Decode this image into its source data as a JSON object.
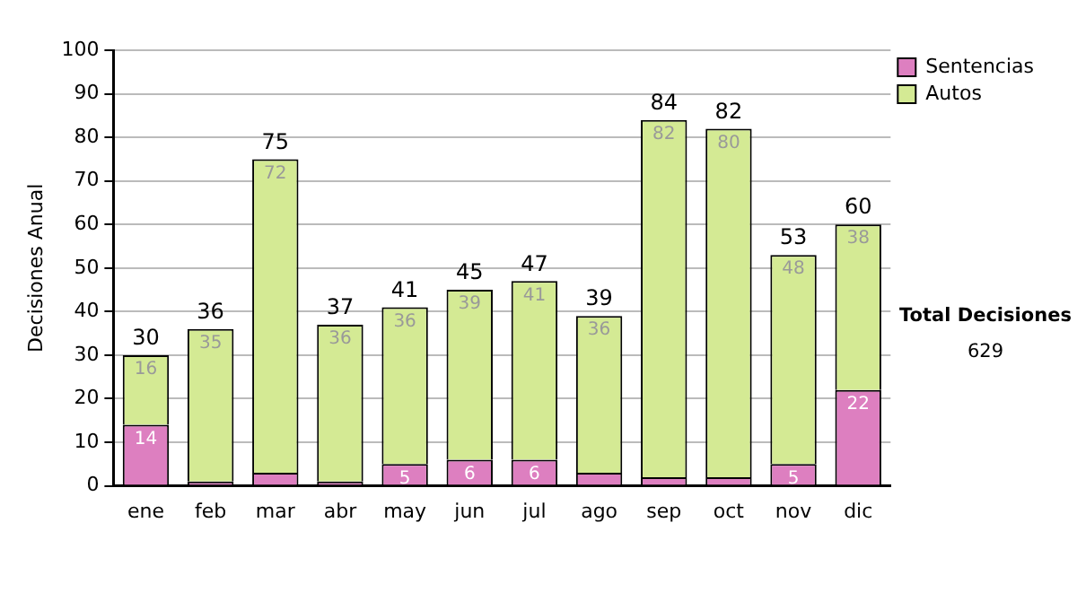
{
  "chart_data": {
    "type": "bar",
    "stacked": true,
    "ylabel": "Decisiones Anual",
    "categories": [
      "ene",
      "feb",
      "mar",
      "abr",
      "may",
      "jun",
      "jul",
      "ago",
      "sep",
      "oct",
      "nov",
      "dic"
    ],
    "series": [
      {
        "name": "Sentencias",
        "color": "#dd7fc0",
        "values": [
          14,
          1,
          3,
          1,
          5,
          6,
          6,
          3,
          2,
          2,
          5,
          22
        ],
        "value_labels": [
          "14",
          null,
          null,
          null,
          "5",
          "6",
          "6",
          null,
          null,
          null,
          "5",
          "22"
        ]
      },
      {
        "name": "Autos",
        "color": "#d4ea94",
        "values": [
          16,
          35,
          72,
          36,
          36,
          39,
          41,
          36,
          82,
          80,
          48,
          38
        ],
        "value_labels": [
          "16",
          "35",
          "72",
          "36",
          "36",
          "39",
          "41",
          "36",
          "82",
          "80",
          "48",
          "38"
        ]
      }
    ],
    "totals": [
      "30",
      "36",
      "75",
      "37",
      "41",
      "45",
      "47",
      "39",
      "84",
      "82",
      "53",
      "60"
    ],
    "ylim": [
      0,
      100
    ],
    "yticks": [
      0,
      10,
      20,
      30,
      40,
      50,
      60,
      70,
      80,
      90,
      100
    ],
    "grid": "y",
    "legend": "right",
    "annotations": [
      "Total Decisiones",
      "629"
    ]
  }
}
